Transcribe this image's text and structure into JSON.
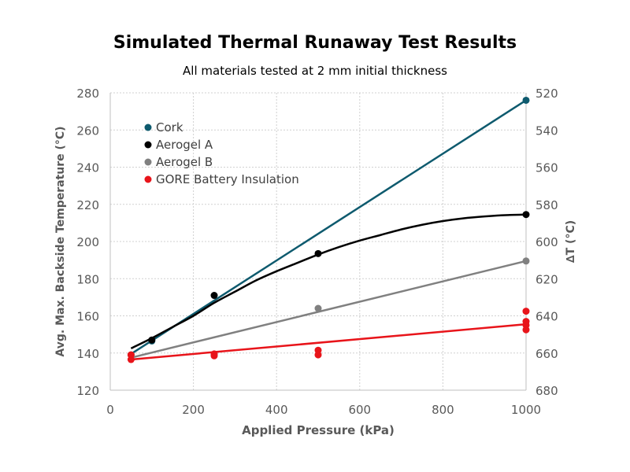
{
  "chart_data": {
    "type": "scatter",
    "title": "Simulated Thermal Runaway Test Results",
    "subtitle": "All materials tested at 2 mm initial thickness",
    "xlabel": "Applied Pressure (kPa)",
    "ylabel": "Avg. Max. Backside Temperature (°C)",
    "y2label": "∆T (°C)",
    "xlim": [
      0,
      1000
    ],
    "ylim": [
      120,
      280
    ],
    "y2lim": [
      680,
      520
    ],
    "xticks": [
      0,
      200,
      400,
      600,
      800,
      1000
    ],
    "yticks": [
      120,
      140,
      160,
      180,
      200,
      220,
      240,
      260,
      280
    ],
    "y2ticks": [
      680,
      660,
      640,
      620,
      600,
      580,
      560,
      540,
      520
    ],
    "grid": true,
    "legend_position": "top-left",
    "series": [
      {
        "name": "Cork",
        "color": "#0e5a6e",
        "points": [
          [
            100,
            146.5
          ],
          [
            1000,
            276
          ]
        ],
        "trend": "linear",
        "trend_points": [
          [
            50,
            139.5
          ],
          [
            1000,
            276
          ]
        ]
      },
      {
        "name": "Aerogel A",
        "color": "#000000",
        "points": [
          [
            100,
            147
          ],
          [
            250,
            171
          ],
          [
            500,
            193.5
          ],
          [
            1000,
            214.5
          ]
        ],
        "trend": "polynomial",
        "trend_points": [
          [
            50,
            142.5
          ],
          [
            100,
            148
          ],
          [
            150,
            154
          ],
          [
            200,
            160
          ],
          [
            250,
            167
          ],
          [
            300,
            173
          ],
          [
            350,
            179
          ],
          [
            400,
            184
          ],
          [
            450,
            188.5
          ],
          [
            500,
            193
          ],
          [
            550,
            197
          ],
          [
            600,
            200.5
          ],
          [
            650,
            203.5
          ],
          [
            700,
            206.5
          ],
          [
            750,
            209
          ],
          [
            800,
            211
          ],
          [
            850,
            212.5
          ],
          [
            900,
            213.5
          ],
          [
            950,
            214.2
          ],
          [
            1000,
            214.5
          ]
        ]
      },
      {
        "name": "Aerogel B",
        "color": "#808080",
        "points": [
          [
            50,
            139
          ],
          [
            250,
            139
          ],
          [
            500,
            164
          ],
          [
            1000,
            189.5
          ]
        ],
        "trend": "linear",
        "trend_points": [
          [
            50,
            137.5
          ],
          [
            1000,
            189.5
          ]
        ]
      },
      {
        "name": "GORE Battery Insulation",
        "color": "#e8141a",
        "points": [
          [
            50,
            139
          ],
          [
            50,
            136.5
          ],
          [
            250,
            139.5
          ],
          [
            250,
            138.5
          ],
          [
            500,
            141.5
          ],
          [
            500,
            139
          ],
          [
            1000,
            162.5
          ],
          [
            1000,
            157
          ],
          [
            1000,
            155
          ],
          [
            1000,
            152.5
          ]
        ],
        "trend": "linear",
        "trend_points": [
          [
            50,
            136.5
          ],
          [
            1000,
            155.5
          ]
        ]
      }
    ]
  }
}
